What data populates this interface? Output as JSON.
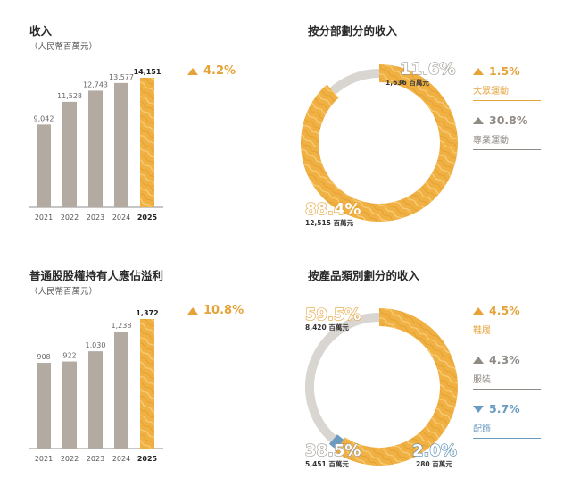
{
  "revenue_panel": {
    "title": "收入",
    "unit": "（人民幣百萬元）",
    "growth": "4.2%"
  },
  "profit_panel": {
    "title": "普通股股權持有人應佔溢利",
    "unit": "（人民幣百萬元）",
    "growth": "10.8%"
  },
  "segment_panel": {
    "title": "按分部劃分的收入",
    "legend": [
      {
        "change": "1.5%",
        "direction": "up",
        "label": "大眾運動",
        "color": "#e5a33a"
      },
      {
        "change": "30.8%",
        "direction": "up",
        "label": "專業運動",
        "color": "#8f8a84"
      }
    ]
  },
  "category_panel": {
    "title": "按產品類別劃分的收入",
    "legend": [
      {
        "change": "4.5%",
        "direction": "up",
        "label": "鞋履",
        "color": "#e5a33a"
      },
      {
        "change": "4.3%",
        "direction": "up",
        "label": "服裝",
        "color": "#8f8a84"
      },
      {
        "change": "5.7%",
        "direction": "down",
        "label": "配飾",
        "color": "#6a9bc0"
      }
    ]
  },
  "colors": {
    "bar_grey": "#b3aaa1",
    "highlight_gold": "#f0b042",
    "donut_grey": "#d9d6d1",
    "accent_blue": "#6a9bc0"
  },
  "chart_data": [
    {
      "type": "bar",
      "title": "收入",
      "ylabel": "人民幣百萬元",
      "categories": [
        "2021",
        "2022",
        "2023",
        "2024",
        "2025"
      ],
      "values": [
        9042,
        11528,
        12743,
        13577,
        14151
      ],
      "value_labels": [
        "9,042",
        "11,528",
        "12,743",
        "13,577",
        "14,151"
      ],
      "highlight": "2025",
      "ylim": [
        0,
        14151
      ]
    },
    {
      "type": "bar",
      "title": "普通股股權持有人應佔溢利",
      "ylabel": "人民幣百萬元",
      "categories": [
        "2021",
        "2022",
        "2023",
        "2024",
        "2025"
      ],
      "values": [
        908,
        922,
        1030,
        1238,
        1372
      ],
      "value_labels": [
        "908",
        "922",
        "1,030",
        "1,238",
        "1,372"
      ],
      "highlight": "2025",
      "ylim": [
        0,
        1372
      ]
    },
    {
      "type": "pie",
      "title": "按分部劃分的收入",
      "slices": [
        {
          "name": "大眾運動",
          "percent": 88.4,
          "percent_label": "88.4%",
          "amount": "12,515 百萬元",
          "color": "#f0b042"
        },
        {
          "name": "專業運動",
          "percent": 11.6,
          "percent_label": "11.6%",
          "amount": "1,636 百萬元",
          "color": "#d9d6d1"
        }
      ]
    },
    {
      "type": "pie",
      "title": "按產品類別劃分的收入",
      "slices": [
        {
          "name": "鞋履",
          "percent": 59.5,
          "percent_label": "59.5%",
          "amount": "8,420 百萬元",
          "color": "#f0b042"
        },
        {
          "name": "配飾",
          "percent": 2.0,
          "percent_label": "2.0%",
          "amount": "280 百萬元",
          "color": "#6a9bc0"
        },
        {
          "name": "服裝",
          "percent": 38.5,
          "percent_label": "38.5%",
          "amount": "5,451 百萬元",
          "color": "#d9d6d1"
        }
      ]
    }
  ]
}
